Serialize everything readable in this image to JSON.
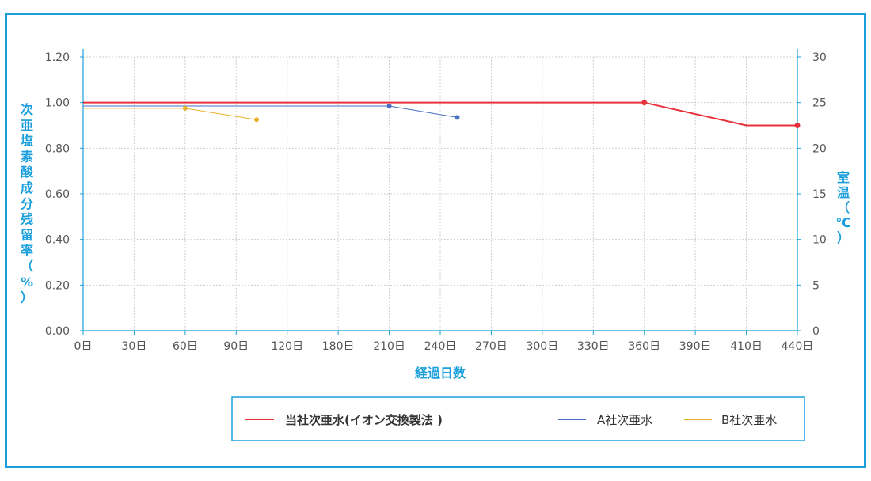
{
  "chart_data": {
    "type": "line",
    "xlabel": "経過日数",
    "ylabel": "次亜塩素酸成分残留率（%）",
    "y2label": "室温（℃）",
    "x_ticks": [
      "0日",
      "30日",
      "60日",
      "90日",
      "120日",
      "180日",
      "210日",
      "240日",
      "270日",
      "300日",
      "330日",
      "360日",
      "390日",
      "410日",
      "440日"
    ],
    "ylim": [
      0,
      1.2
    ],
    "y_ticks": [
      "0.00",
      "0.20",
      "0.40",
      "0.60",
      "0.80",
      "1.00",
      "1.20"
    ],
    "y2lim": [
      0,
      30
    ],
    "y2_ticks": [
      "0",
      "5",
      "10",
      "15",
      "20",
      "25",
      "30"
    ],
    "grid": true,
    "legend_position": "bottom",
    "series": [
      {
        "name": "当社次亜水(イオン交換製法 )",
        "color": "#e8313b",
        "line_width": 2,
        "points": [
          {
            "x": "0日",
            "y": 1.0,
            "marker": false
          },
          {
            "x": "360日",
            "y": 1.0,
            "marker": true
          },
          {
            "x": "410日",
            "y": 0.9,
            "marker": false
          },
          {
            "x": "440日",
            "y": 0.9,
            "marker": true
          }
        ]
      },
      {
        "name": "A社次亜水",
        "color": "#4a6fc4",
        "line_width": 1,
        "points": [
          {
            "x": "0日",
            "y": 0.985,
            "marker": false
          },
          {
            "x": "210日",
            "y": 0.985,
            "marker": true
          },
          {
            "x": "250日",
            "y": 0.935,
            "marker": true
          }
        ]
      },
      {
        "name": "B社次亜水",
        "color": "#e8b22a",
        "line_width": 1,
        "points": [
          {
            "x": "0日",
            "y": 0.975,
            "marker": false
          },
          {
            "x": "60日",
            "y": 0.975,
            "marker": true
          },
          {
            "x": "102日",
            "y": 0.925,
            "marker": true
          }
        ]
      }
    ]
  }
}
